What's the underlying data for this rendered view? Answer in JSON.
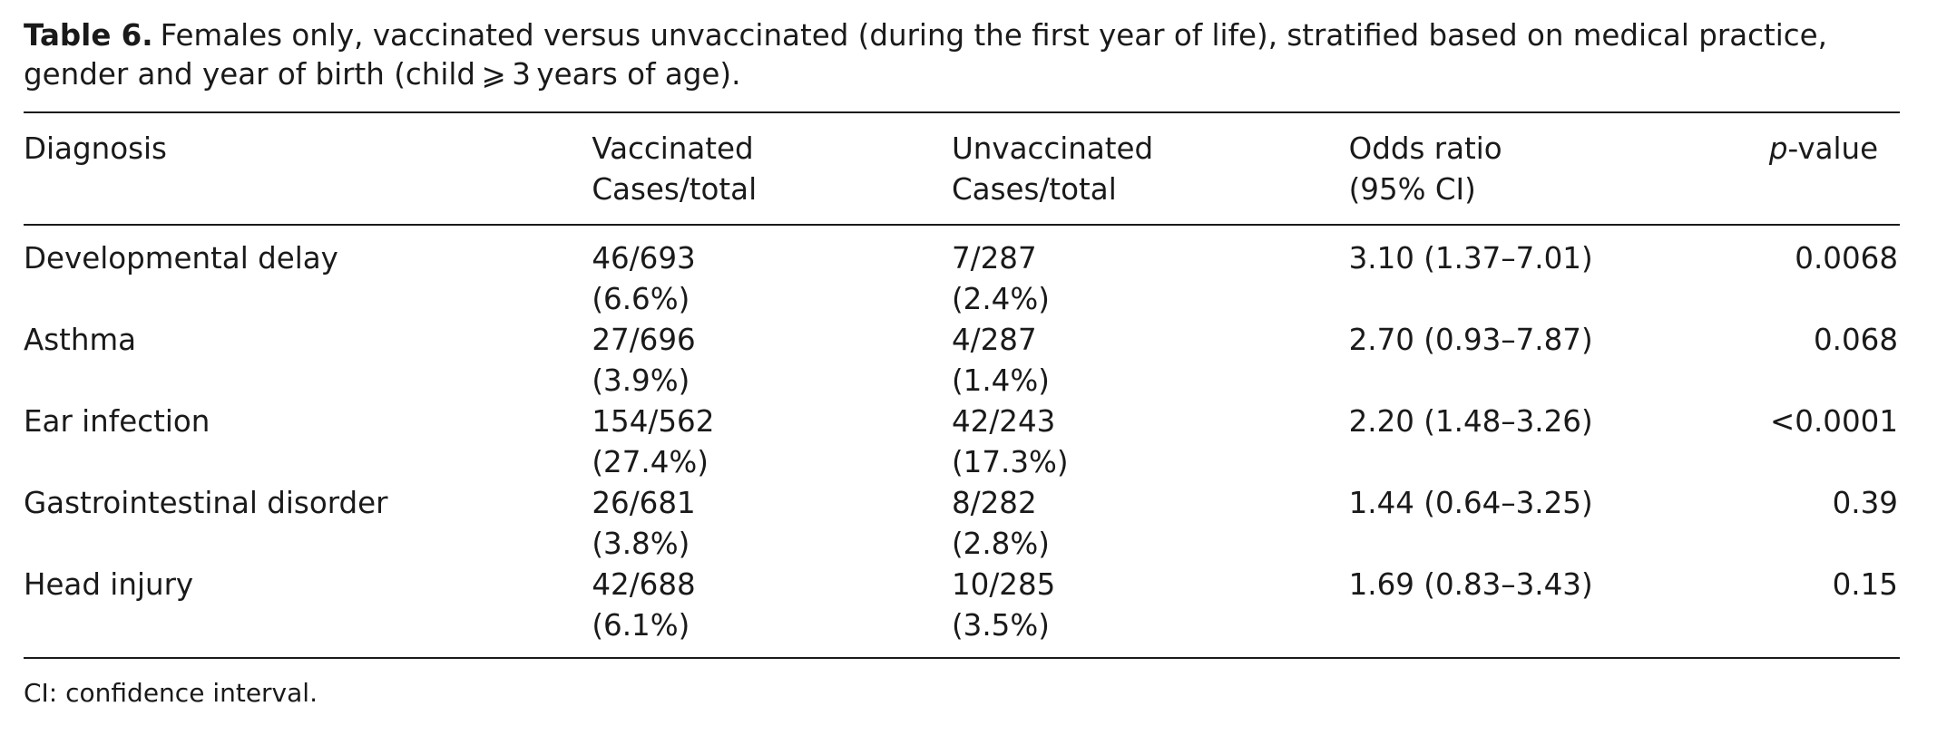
{
  "caption": {
    "label": "Table 6.",
    "text": "Females only, vaccinated versus unvaccinated (during the first year of life), stratified based on medical practice, gender and year of birth (child ⩾ 3 years of age)."
  },
  "columns": {
    "diagnosis": "Diagnosis",
    "vaccinated_line1": "Vaccinated",
    "vaccinated_line2": "Cases/total",
    "unvaccinated_line1": "Unvaccinated",
    "unvaccinated_line2": "Cases/total",
    "or_line1": "Odds ratio",
    "or_line2": "(95% CI)",
    "p_italic": "p",
    "p_rest": "-value"
  },
  "rows": [
    {
      "diagnosis": "Developmental delay",
      "vacc_count": "46/693",
      "vacc_pct": "(6.6%)",
      "unvacc_count": "7/287",
      "unvacc_pct": "(2.4%)",
      "or": "3.10 (1.37–7.01)",
      "p": "0.0068"
    },
    {
      "diagnosis": "Asthma",
      "vacc_count": "27/696",
      "vacc_pct": "(3.9%)",
      "unvacc_count": "4/287",
      "unvacc_pct": "(1.4%)",
      "or": "2.70 (0.93–7.87)",
      "p": "0.068"
    },
    {
      "diagnosis": "Ear infection",
      "vacc_count": "154/562",
      "vacc_pct": "(27.4%)",
      "unvacc_count": "42/243",
      "unvacc_pct": "(17.3%)",
      "or": "2.20 (1.48–3.26)",
      "p": "<0.0001"
    },
    {
      "diagnosis": "Gastrointestinal disorder",
      "vacc_count": "26/681",
      "vacc_pct": "(3.8%)",
      "unvacc_count": "8/282",
      "unvacc_pct": "(2.8%)",
      "or": "1.44 (0.64–3.25)",
      "p": "0.39"
    },
    {
      "diagnosis": "Head injury",
      "vacc_count": "42/688",
      "vacc_pct": "(6.1%)",
      "unvacc_count": "10/285",
      "unvacc_pct": "(3.5%)",
      "or": "1.69 (0.83–3.43)",
      "p": "0.15"
    }
  ],
  "footnote": "CI: confidence interval."
}
